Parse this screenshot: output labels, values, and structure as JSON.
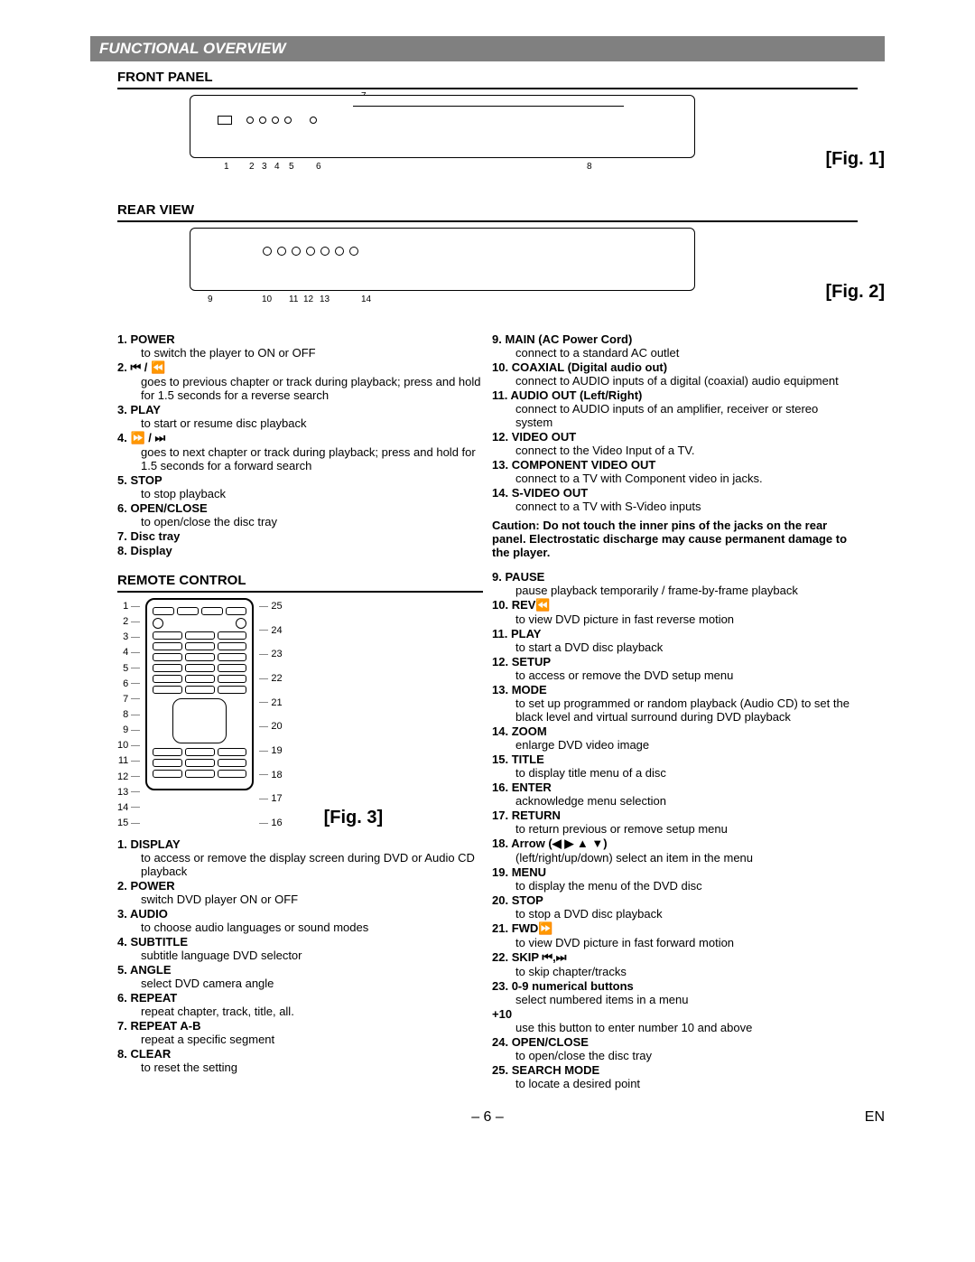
{
  "section_title": "FUNCTIONAL OVERVIEW",
  "front_panel_heading": "FRONT PANEL",
  "rear_view_heading": "REAR VIEW",
  "remote_heading": "REMOTE CONTROL",
  "fig1": "[Fig. 1]",
  "fig2": "[Fig. 2]",
  "fig3": "[Fig. 3]",
  "front_callouts": [
    "1",
    "2",
    "3",
    "4",
    "5",
    "6",
    "7",
    "8"
  ],
  "rear_callouts": [
    "9",
    "10",
    "11",
    "12",
    "13",
    "14"
  ],
  "panel_left": [
    {
      "n": "1.",
      "t": "POWER",
      "d": "to switch the player to ON or OFF"
    },
    {
      "n": "2.",
      "t": "⏮ / ⏪",
      "d": "goes to previous chapter or track during playback; press and hold for 1.5 seconds for a reverse search"
    },
    {
      "n": "3.",
      "t": "PLAY",
      "d": "to start or resume disc playback"
    },
    {
      "n": "4.",
      "t": "⏩ / ⏭",
      "d": "goes to next chapter or track during playback; press and hold for 1.5 seconds for a forward search"
    },
    {
      "n": "5.",
      "t": "STOP",
      "d": "to stop playback"
    },
    {
      "n": "6.",
      "t": "OPEN/CLOSE",
      "d": "to open/close the disc tray"
    },
    {
      "n": "7.",
      "t": "Disc tray",
      "d": ""
    },
    {
      "n": "8.",
      "t": "Display",
      "d": ""
    }
  ],
  "panel_right": [
    {
      "n": "9.",
      "t": "MAIN (AC Power Cord)",
      "d": "connect to a standard AC outlet"
    },
    {
      "n": "10.",
      "t": "COAXIAL (Digital audio out)",
      "d": "connect to AUDIO inputs of a digital (coaxial) audio equipment"
    },
    {
      "n": "11.",
      "t": "AUDIO OUT (Left/Right)",
      "d": "connect to AUDIO inputs of an amplifier, receiver or stereo system"
    },
    {
      "n": "12.",
      "t": "VIDEO OUT",
      "d": "connect to the Video Input of a TV."
    },
    {
      "n": "13.",
      "t": "COMPONENT VIDEO OUT",
      "d": "connect to a TV with Component video in jacks."
    },
    {
      "n": "14.",
      "t": "S-VIDEO OUT",
      "d": "connect to a TV with S-Video inputs"
    }
  ],
  "caution": "Caution: Do not touch the inner pins of the jacks on the rear panel. Electrostatic discharge may cause permanent damage to the player.",
  "remote_left_nums": [
    "1",
    "2",
    "3",
    "4",
    "5",
    "6",
    "7",
    "8",
    "9",
    "10",
    "11",
    "12",
    "13",
    "14",
    "15"
  ],
  "remote_right_nums": [
    "25",
    "24",
    "23",
    "22",
    "21",
    "20",
    "19",
    "18",
    "17",
    "16"
  ],
  "remote_left": [
    {
      "n": "1.",
      "t": "DISPLAY",
      "d": "to access or remove the display screen during DVD or Audio CD playback"
    },
    {
      "n": "2.",
      "t": "POWER",
      "d": "switch DVD player ON or OFF"
    },
    {
      "n": "3.",
      "t": "AUDIO",
      "d": "to choose audio languages or sound modes"
    },
    {
      "n": "4.",
      "t": "SUBTITLE",
      "d": "subtitle language DVD selector"
    },
    {
      "n": "5.",
      "t": "ANGLE",
      "d": "select DVD camera angle"
    },
    {
      "n": "6.",
      "t": "REPEAT",
      "d": "repeat chapter, track, title, all."
    },
    {
      "n": "7.",
      "t": "REPEAT A-B",
      "d": "repeat a specific segment"
    },
    {
      "n": "8.",
      "t": "CLEAR",
      "d": "to reset the setting"
    }
  ],
  "remote_right": [
    {
      "n": "9.",
      "t": "PAUSE",
      "d": "pause playback temporarily / frame-by-frame playback"
    },
    {
      "n": "10.",
      "t": "REV⏪",
      "d": "to view DVD picture in fast reverse motion"
    },
    {
      "n": "11.",
      "t": "PLAY",
      "d": "to start a DVD disc playback"
    },
    {
      "n": "12.",
      "t": "SETUP",
      "d": "to access or remove the DVD setup menu"
    },
    {
      "n": "13.",
      "t": "MODE",
      "d": "to set up programmed or random playback (Audio CD) to set the black level and virtual surround during DVD playback"
    },
    {
      "n": "14.",
      "t": "ZOOM",
      "d": "enlarge DVD video image"
    },
    {
      "n": "15.",
      "t": "TITLE",
      "d": "to display title menu of a disc"
    },
    {
      "n": "16.",
      "t": "ENTER",
      "d": "acknowledge menu selection"
    },
    {
      "n": "17.",
      "t": "RETURN",
      "d": "to return previous or remove setup menu"
    },
    {
      "n": "18.",
      "t": "Arrow (◀ ▶ ▲ ▼)",
      "d": "(left/right/up/down) select an item in the menu"
    },
    {
      "n": "19.",
      "t": "MENU",
      "d": "to display the menu of the DVD disc"
    },
    {
      "n": "20.",
      "t": "STOP",
      "d": "to stop a DVD disc playback"
    },
    {
      "n": "21.",
      "t": "FWD⏩",
      "d": "to view DVD picture in fast forward motion"
    },
    {
      "n": "22.",
      "t": "SKIP ⏮,⏭",
      "d": "to skip chapter/tracks"
    },
    {
      "n": "23.",
      "t": "0-9 numerical buttons",
      "d": "select numbered items in a menu"
    },
    {
      "n": "",
      "t": "+10",
      "d": "use this button to enter number 10 and above"
    },
    {
      "n": "24.",
      "t": "OPEN/CLOSE",
      "d": "to open/close the disc tray"
    },
    {
      "n": "25.",
      "t": "SEARCH MODE",
      "d": "to locate a desired point"
    }
  ],
  "page_num": "– 6 –",
  "lang": "EN"
}
